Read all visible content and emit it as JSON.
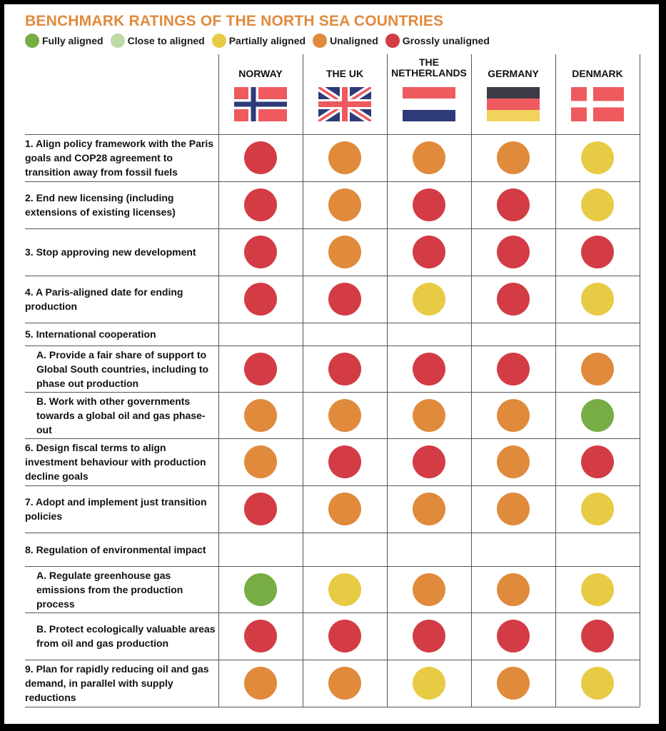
{
  "chart_data": {
    "type": "table",
    "title": "BENCHMARK RATINGS OF THE NORTH SEA COUNTRIES",
    "legend": [
      {
        "key": "fully",
        "label": "Fully aligned",
        "color": "#78AC44"
      },
      {
        "key": "close",
        "label": "Close to aligned",
        "color": "#BFD9A2"
      },
      {
        "key": "partial",
        "label": "Partially aligned",
        "color": "#E8CB45"
      },
      {
        "key": "unaligned",
        "label": "Unaligned",
        "color": "#E08A3C"
      },
      {
        "key": "gross",
        "label": "Grossly unaligned",
        "color": "#D33C44"
      }
    ],
    "columns": [
      {
        "name": "NORWAY",
        "flag": "norway-flag"
      },
      {
        "name": "THE UK",
        "flag": "uk-flag"
      },
      {
        "name": "THE NETHERLANDS",
        "flag": "netherlands-flag"
      },
      {
        "name": "GERMANY",
        "flag": "germany-flag"
      },
      {
        "name": "DENMARK",
        "flag": "denmark-flag"
      }
    ],
    "rows": [
      {
        "label": "1. Align policy framework with the Paris goals and COP28 agreement to transition away from fossil fuels",
        "sub": false,
        "ratings": [
          "gross",
          "unaligned",
          "unaligned",
          "unaligned",
          "partial"
        ]
      },
      {
        "label": "2. End new licensing (including extensions of existing licenses)",
        "sub": false,
        "ratings": [
          "gross",
          "unaligned",
          "gross",
          "gross",
          "partial"
        ]
      },
      {
        "label": "3. Stop approving new development",
        "sub": false,
        "ratings": [
          "gross",
          "unaligned",
          "gross",
          "gross",
          "gross"
        ]
      },
      {
        "label": "4. A Paris-aligned date for ending production",
        "sub": false,
        "ratings": [
          "gross",
          "gross",
          "partial",
          "gross",
          "partial"
        ]
      },
      {
        "label": "5. International cooperation",
        "sub": false,
        "ratings": [
          null,
          null,
          null,
          null,
          null
        ]
      },
      {
        "label": "A. Provide a fair share of support to Global South countries, including to phase out production",
        "sub": true,
        "ratings": [
          "gross",
          "gross",
          "gross",
          "gross",
          "unaligned"
        ]
      },
      {
        "label": "B. Work with other governments towards a global oil and gas phase-out",
        "sub": true,
        "ratings": [
          "unaligned",
          "unaligned",
          "unaligned",
          "unaligned",
          "fully"
        ]
      },
      {
        "label": "6. Design fiscal terms to align investment behaviour with production decline goals",
        "sub": false,
        "ratings": [
          "unaligned",
          "gross",
          "gross",
          "unaligned",
          "gross"
        ]
      },
      {
        "label": "7. Adopt and implement just transition policies",
        "sub": false,
        "ratings": [
          "gross",
          "unaligned",
          "unaligned",
          "unaligned",
          "partial"
        ]
      },
      {
        "label": "8. Regulation of environmental impact",
        "sub": false,
        "ratings": [
          null,
          null,
          null,
          null,
          null
        ]
      },
      {
        "label": "A. Regulate greenhouse gas emissions from the production process",
        "sub": true,
        "ratings": [
          "fully",
          "partial",
          "unaligned",
          "unaligned",
          "partial"
        ]
      },
      {
        "label": "B. Protect ecologically valuable areas from oil and gas production",
        "sub": true,
        "ratings": [
          "gross",
          "gross",
          "gross",
          "gross",
          "gross"
        ]
      },
      {
        "label": "9. Plan for rapidly reducing oil and gas demand, in parallel with supply reductions",
        "sub": false,
        "ratings": [
          "unaligned",
          "unaligned",
          "partial",
          "unaligned",
          "partial"
        ]
      }
    ]
  }
}
